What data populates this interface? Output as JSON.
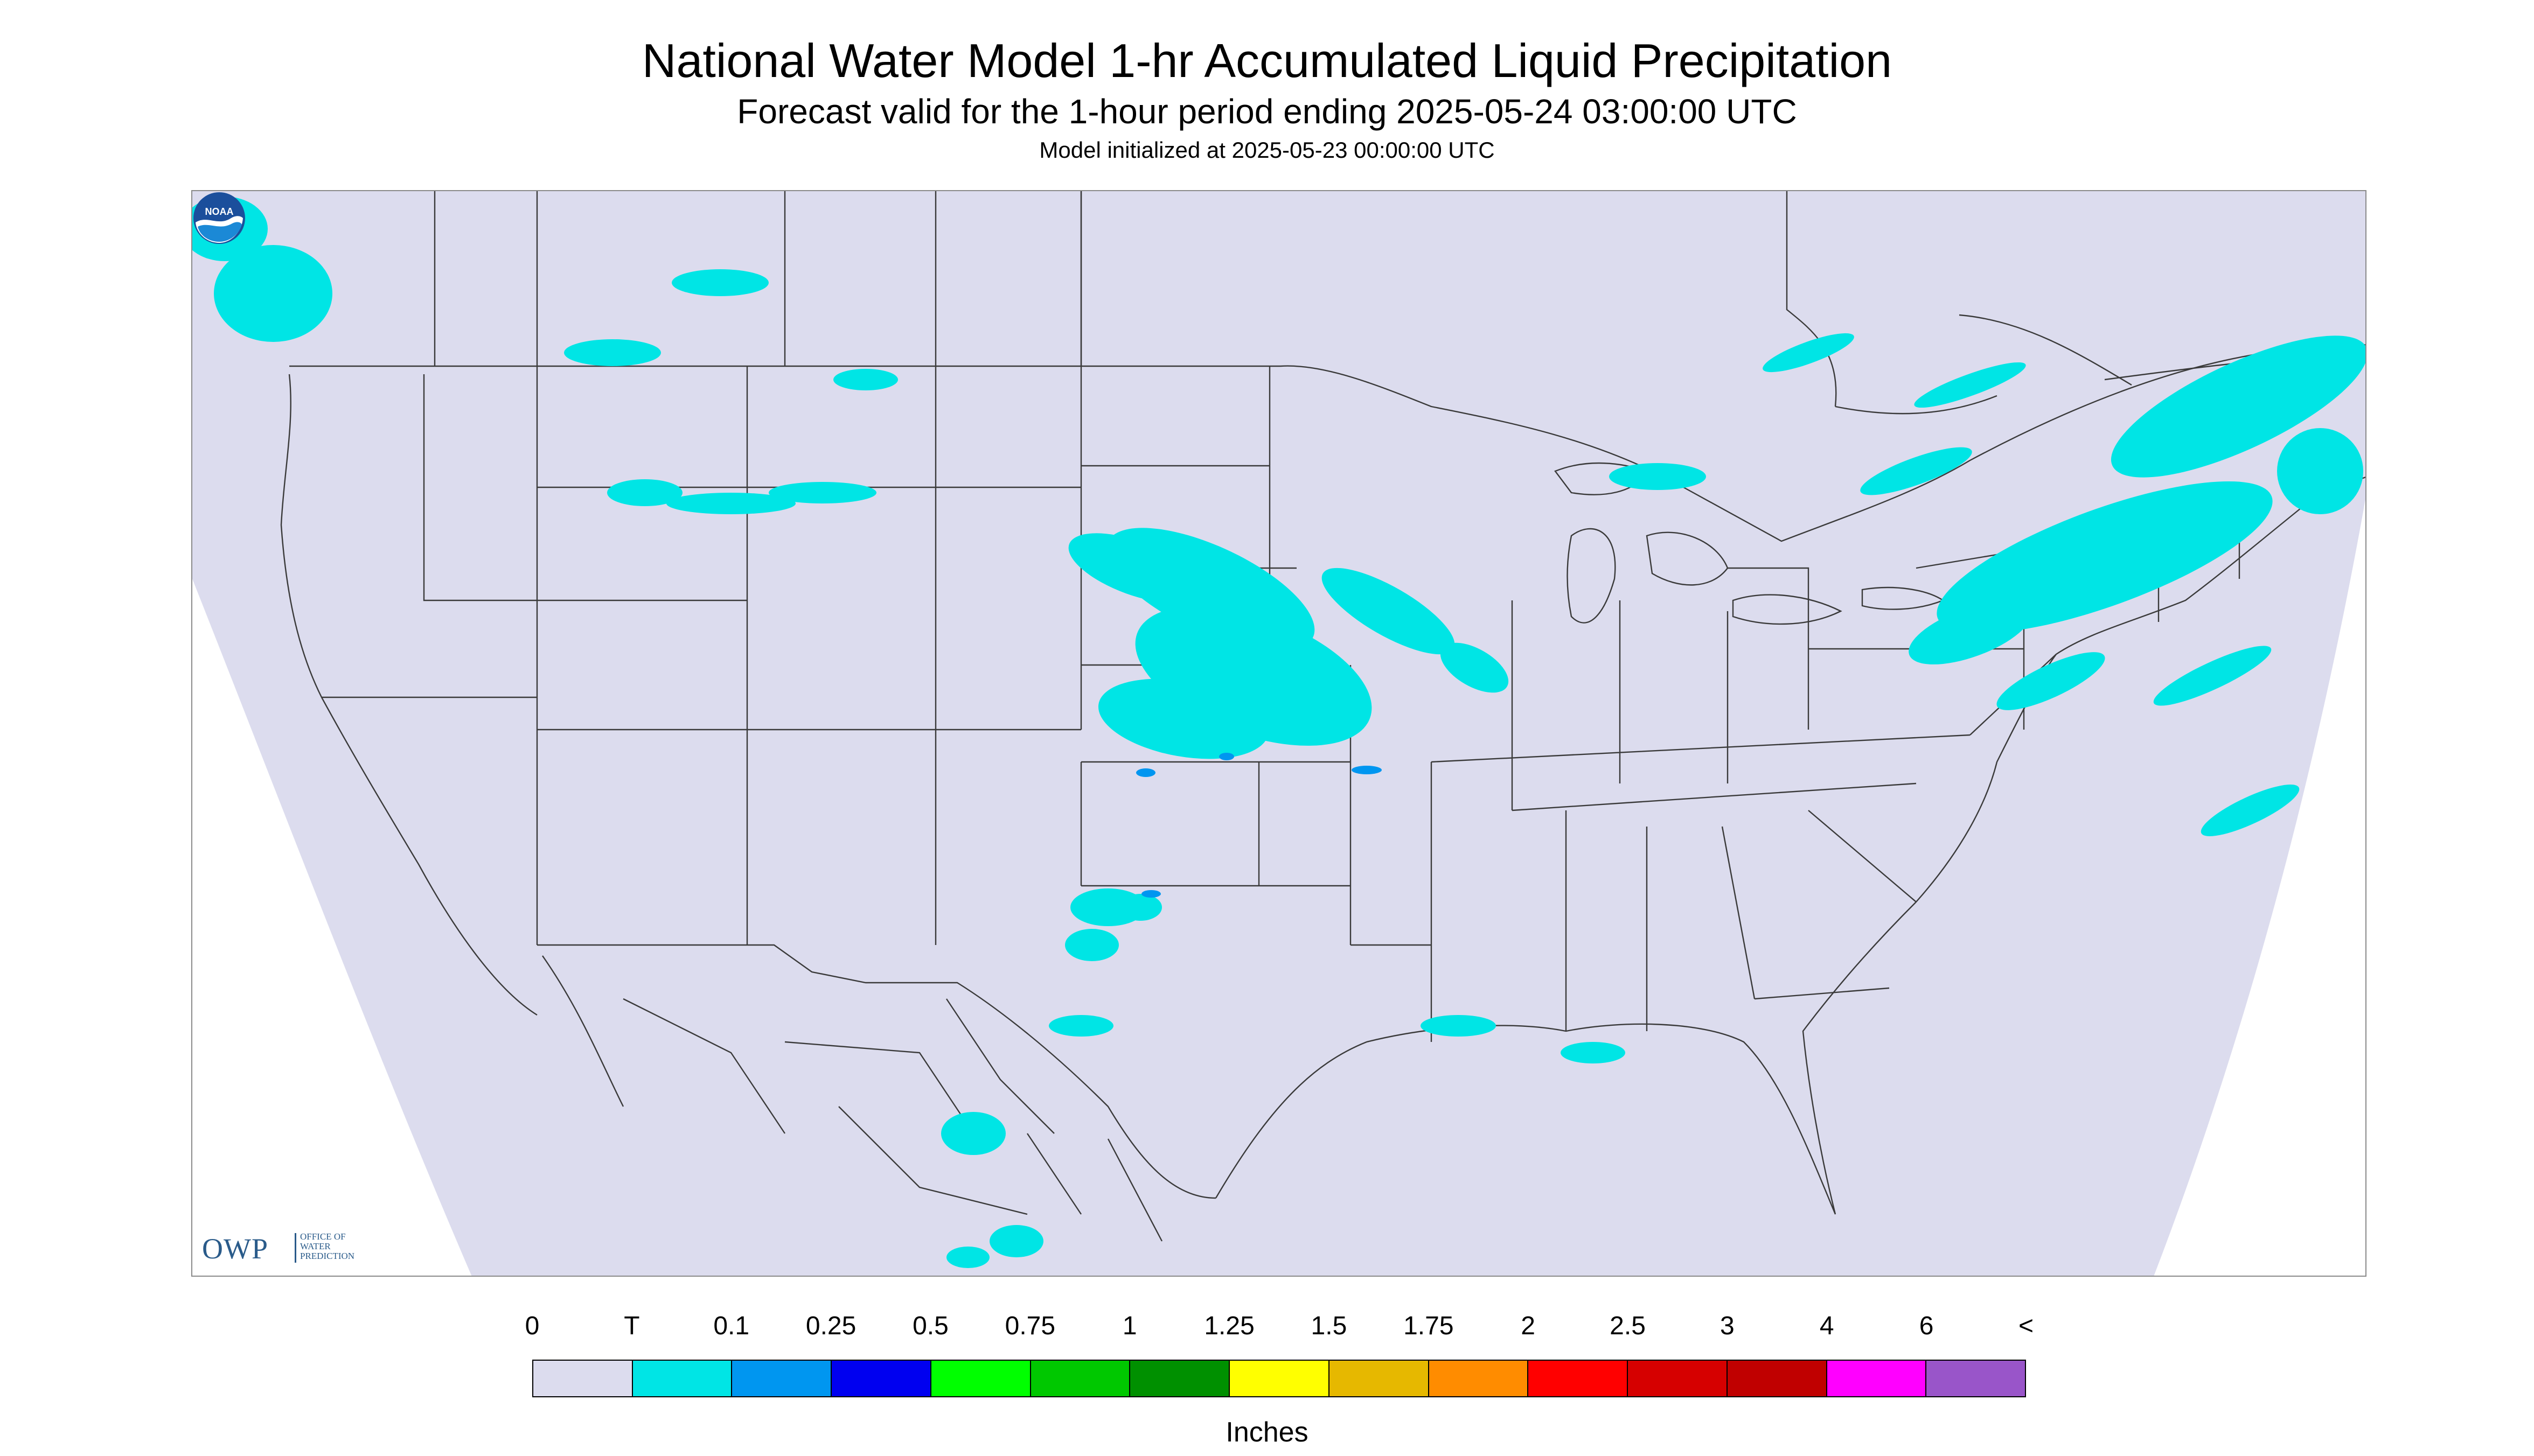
{
  "header": {
    "title": "National Water Model 1-hr Accumulated Liquid Precipitation",
    "subtitle": "Forecast valid for the 1-hour period ending 2025-05-24 03:00:00 UTC",
    "init_line": "Model initialized at 2025-05-23 00:00:00 UTC"
  },
  "map": {
    "region": "Contiguous United States with parts of Canada and Mexico",
    "background_color": "#dcdcee",
    "boundary_color": "#3a3a3a",
    "precip_color": "#00e5e5",
    "heavier_precip_color": "#0096f0",
    "precip_areas": [
      "Northern Rockies / Montana",
      "Nebraska, Iowa, Missouri, Kansas",
      "Oklahoma / North Texas",
      "Great Lakes and Northeast",
      "Quebec / Ontario / New England",
      "Gulf Coast scattered",
      "Western Atlantic off Mid-Atlantic"
    ]
  },
  "logos": {
    "owp": {
      "main": "OWP",
      "sub": "OFFICE OF\nWATER\nPREDICTION"
    },
    "noaa": {
      "text": "NOAA",
      "icon": "noaa-logo-icon"
    }
  },
  "legend": {
    "labels": [
      "0",
      "T",
      "0.1",
      "0.25",
      "0.5",
      "0.75",
      "1",
      "1.25",
      "1.5",
      "1.75",
      "2",
      "2.5",
      "3",
      "4",
      "6",
      "<"
    ],
    "colors": [
      "#dcdcee",
      "#00e5e5",
      "#0096f0",
      "#0000f0",
      "#00ff00",
      "#00c800",
      "#009000",
      "#ffff00",
      "#e6b800",
      "#ff8c00",
      "#ff0000",
      "#d60000",
      "#c00000",
      "#ff00ff",
      "#9955c9"
    ],
    "units": "Inches"
  }
}
